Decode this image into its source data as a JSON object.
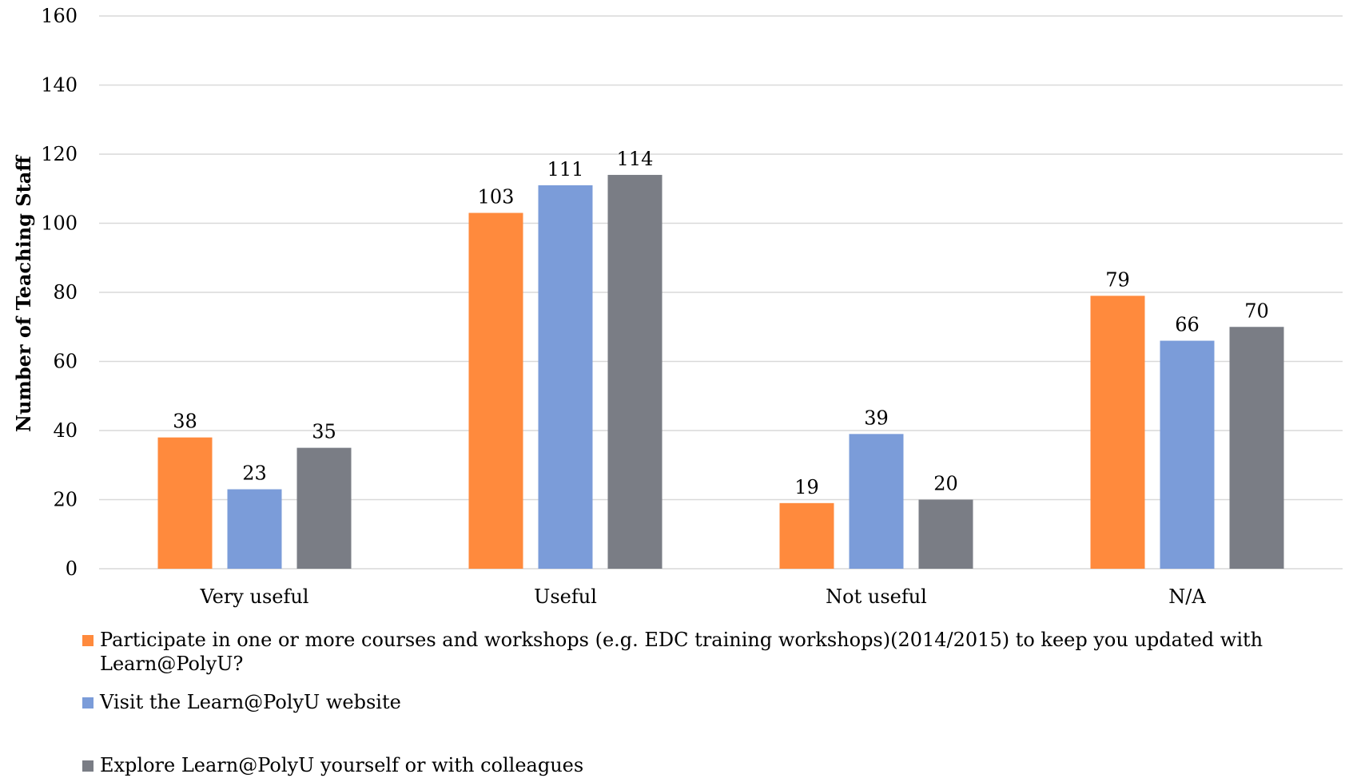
{
  "chart_data": {
    "type": "bar",
    "title": "",
    "xlabel": "",
    "ylabel": "Number of Teaching Staff",
    "ylim": [
      0,
      160
    ],
    "yticks": [
      0,
      20,
      40,
      60,
      80,
      100,
      120,
      140,
      160
    ],
    "grid": true,
    "legend_position": "bottom",
    "categories": [
      "Very useful",
      "Useful",
      "Not useful",
      "N/A"
    ],
    "series": [
      {
        "name": "Participate in one or more courses and workshops (e.g. EDC training workshops)(2014/2015) to keep you updated with Learn@PolyU?",
        "color": "#FF8A3D",
        "values": [
          38,
          103,
          19,
          79
        ]
      },
      {
        "name": "Visit the Learn@PolyU website",
        "color": "#7B9CD9",
        "values": [
          23,
          111,
          39,
          66
        ]
      },
      {
        "name": "Explore Learn@PolyU yourself or with colleagues",
        "color": "#7A7D85",
        "values": [
          35,
          114,
          20,
          70
        ]
      }
    ]
  }
}
